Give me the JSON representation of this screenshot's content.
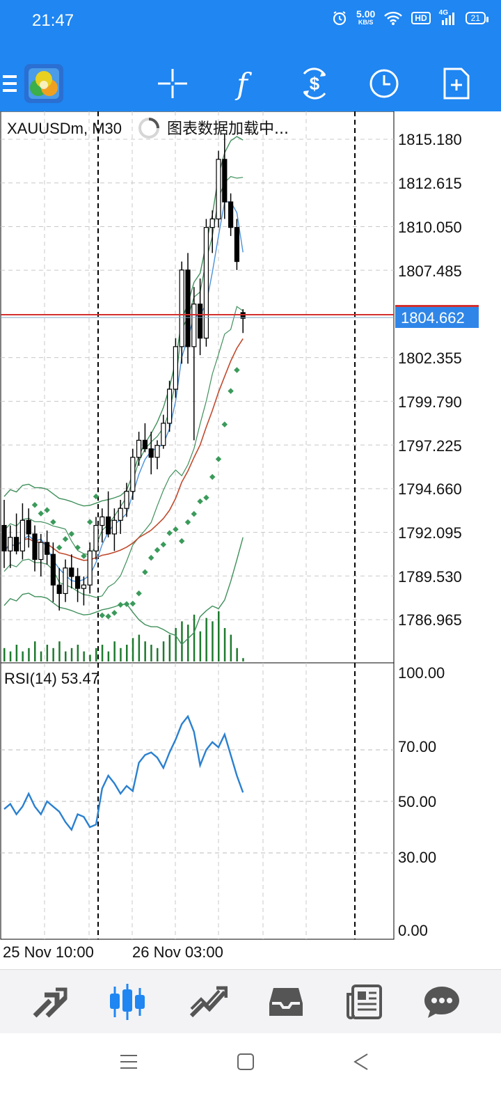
{
  "status": {
    "time": "21:47",
    "net_speed_value": "5.00",
    "net_speed_unit": "KB/S",
    "hd": "HD",
    "network": "4G",
    "battery": "21"
  },
  "toolbar": {
    "icons": [
      "menu-icon",
      "app-logo",
      "crosshair-icon",
      "indicator-f-icon",
      "trade-icon",
      "clock-icon",
      "new-order-icon"
    ],
    "indicator_glyph": "f"
  },
  "chart": {
    "symbol": "XAUUSDm, M30",
    "loading_text": "图表数据加载中...",
    "price_labels": [
      "1815.180",
      "1812.615",
      "1810.050",
      "1807.485",
      "1802.355",
      "1799.790",
      "1797.225",
      "1794.660",
      "1792.095",
      "1789.530",
      "1786.965"
    ],
    "current_price": "1804.662",
    "rsi_label": "RSI(14) 53.47",
    "rsi_levels": [
      "100.00",
      "70.00",
      "50.00",
      "30.00",
      "0.00"
    ],
    "time_labels": [
      "25 Nov 10:00",
      "26 Nov 03:00"
    ],
    "colors": {
      "bid_line": "#d32f2f",
      "price_badge": "#2f86e8",
      "bands": "#3f8f5b",
      "ma": "#c14a2e",
      "fast_ma": "#4a90d9",
      "psar": "#3a9a5a",
      "volume": "#1e7a2e",
      "rsi": "#2a80d0"
    }
  },
  "chart_data": [
    {
      "type": "candlestick",
      "title": "XAUUSDm, M30",
      "y_ticks": [
        1815.18,
        1812.615,
        1810.05,
        1807.485,
        1802.355,
        1799.79,
        1797.225,
        1794.66,
        1792.095,
        1789.53,
        1786.965
      ],
      "ylim": [
        1785.0,
        1816.5
      ],
      "current_price": 1804.662,
      "x_tick_labels": [
        "25 Nov 10:00",
        "26 Nov 03:00"
      ],
      "ohlc": [
        [
          1792.5,
          1794.0,
          1790.0,
          1791.0
        ],
        [
          1791.0,
          1792.5,
          1790.0,
          1791.8
        ],
        [
          1791.8,
          1793.2,
          1790.8,
          1791.0
        ],
        [
          1791.0,
          1793.8,
          1790.5,
          1792.8
        ],
        [
          1792.8,
          1793.5,
          1791.2,
          1792.0
        ],
        [
          1792.0,
          1792.5,
          1789.8,
          1790.5
        ],
        [
          1790.5,
          1792.0,
          1789.5,
          1791.5
        ],
        [
          1791.5,
          1792.2,
          1790.2,
          1790.8
        ],
        [
          1790.8,
          1791.5,
          1788.0,
          1789.0
        ],
        [
          1789.0,
          1790.0,
          1787.5,
          1788.5
        ],
        [
          1788.5,
          1790.5,
          1788.0,
          1790.0
        ],
        [
          1790.0,
          1790.8,
          1788.8,
          1789.5
        ],
        [
          1789.5,
          1790.0,
          1788.0,
          1788.8
        ],
        [
          1788.8,
          1789.5,
          1787.8,
          1789.0
        ],
        [
          1789.0,
          1791.5,
          1788.5,
          1791.0
        ],
        [
          1791.0,
          1793.0,
          1790.5,
          1792.5
        ],
        [
          1792.5,
          1793.5,
          1791.5,
          1793.0
        ],
        [
          1793.0,
          1794.5,
          1791.8,
          1792.0
        ],
        [
          1792.0,
          1793.5,
          1791.0,
          1792.8
        ],
        [
          1792.8,
          1794.0,
          1792.0,
          1793.5
        ],
        [
          1793.5,
          1795.0,
          1793.0,
          1794.5
        ],
        [
          1794.5,
          1797.0,
          1794.0,
          1796.5
        ],
        [
          1796.5,
          1798.0,
          1796.0,
          1797.5
        ],
        [
          1797.5,
          1798.5,
          1796.8,
          1797.0
        ],
        [
          1797.0,
          1798.0,
          1795.5,
          1796.5
        ],
        [
          1796.5,
          1797.5,
          1795.8,
          1797.2
        ],
        [
          1797.2,
          1799.0,
          1797.0,
          1798.5
        ],
        [
          1798.5,
          1801.0,
          1798.0,
          1800.5
        ],
        [
          1800.5,
          1803.5,
          1800.0,
          1803.0
        ],
        [
          1803.0,
          1808.0,
          1802.0,
          1807.5
        ],
        [
          1807.5,
          1808.5,
          1802.0,
          1803.0
        ],
        [
          1803.0,
          1806.5,
          1797.5,
          1805.5
        ],
        [
          1805.5,
          1807.0,
          1802.5,
          1803.5
        ],
        [
          1803.5,
          1810.5,
          1803.0,
          1810.0
        ],
        [
          1810.0,
          1811.0,
          1808.5,
          1810.5
        ],
        [
          1810.5,
          1814.5,
          1810.0,
          1814.0
        ],
        [
          1814.0,
          1815.5,
          1810.5,
          1811.5
        ],
        [
          1811.5,
          1812.0,
          1809.5,
          1810.0
        ],
        [
          1810.0,
          1810.5,
          1807.5,
          1808.0
        ],
        [
          1805.0,
          1805.2,
          1803.8,
          1804.662
        ]
      ],
      "volume": [
        4,
        3,
        5,
        3,
        4,
        6,
        3,
        5,
        4,
        6,
        3,
        4,
        5,
        3,
        2,
        4,
        5,
        3,
        6,
        4,
        5,
        7,
        8,
        6,
        5,
        4,
        6,
        8,
        10,
        12,
        11,
        14,
        9,
        13,
        12,
        15,
        10,
        8,
        4,
        1
      ]
    },
    {
      "type": "line",
      "title": "RSI(14) 53.47",
      "ylim": [
        0,
        100
      ],
      "y_ticks": [
        0,
        30,
        50,
        70,
        100
      ],
      "series": [
        {
          "name": "RSI(14)",
          "values": [
            47,
            49,
            45,
            48,
            53,
            48,
            45,
            50,
            48,
            46,
            42,
            39,
            45,
            44,
            40,
            41,
            55,
            60,
            57,
            53,
            56,
            54,
            65,
            68,
            69,
            67,
            63,
            69,
            74,
            80,
            83,
            77,
            64,
            70,
            73,
            71,
            76,
            68,
            60,
            53.47
          ]
        }
      ]
    }
  ]
}
